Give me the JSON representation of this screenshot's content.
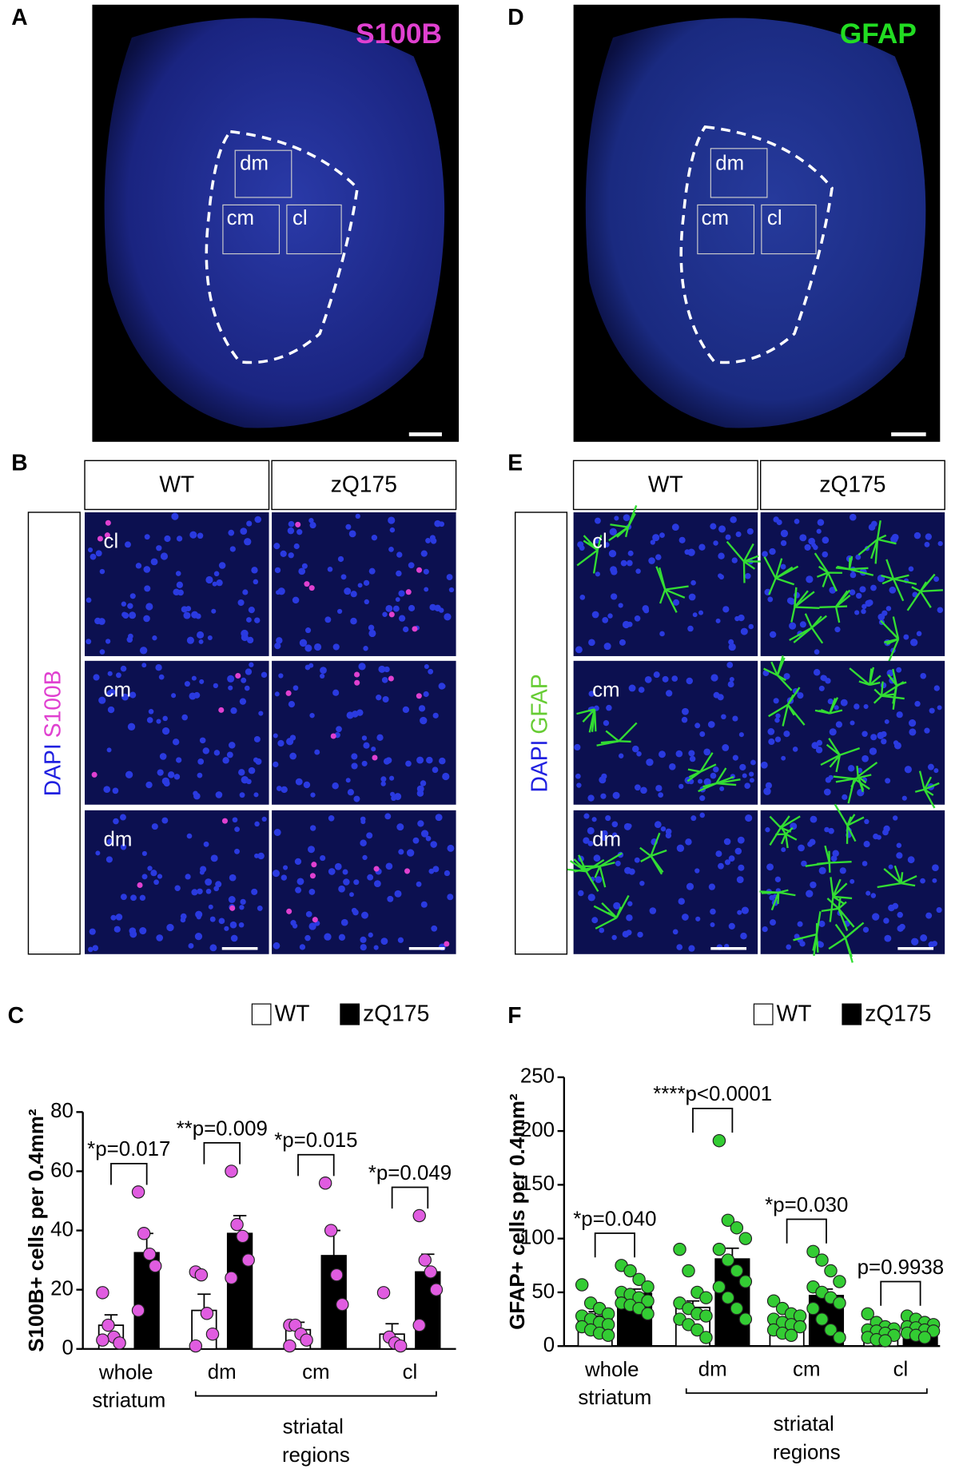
{
  "figure": {
    "labels": [
      "A",
      "B",
      "C",
      "D",
      "E",
      "F"
    ],
    "a": {
      "marker": "S100B",
      "regions": [
        "dm",
        "cm",
        "cl"
      ]
    },
    "b": {
      "columns": [
        "WT",
        "zQ175"
      ],
      "rows": [
        "cl",
        "cm",
        "dm"
      ],
      "stain": [
        "DAPI",
        "S100B"
      ]
    },
    "d": {
      "marker": "GFAP",
      "regions": [
        "dm",
        "cm",
        "cl"
      ]
    },
    "e": {
      "columns": [
        "WT",
        "zQ175"
      ],
      "rows": [
        "cl",
        "cm",
        "dm"
      ],
      "stain": [
        "DAPI",
        "GFAP"
      ]
    }
  },
  "chart_data": [
    {
      "type": "bar",
      "y_label": "S100B+ cells per 0.4mm²",
      "categories": [
        "whole striatum",
        "dm",
        "cm",
        "cl"
      ],
      "group_label": "striatal regions",
      "ylim": [
        0,
        80
      ],
      "yticks": [
        0,
        20,
        40,
        60,
        80
      ],
      "point_color": "#e05ce0",
      "annotations": [
        "*p=0.017",
        "**p=0.009",
        "*p=0.015",
        "*p=0.049"
      ],
      "series": [
        {
          "name": "WT",
          "color": "#ffffff",
          "values": [
            8,
            13,
            6.5,
            5
          ],
          "errors": [
            3.5,
            5.5,
            2.5,
            3.5
          ],
          "points": [
            [
              19,
              8,
              4,
              2,
              3
            ],
            [
              26,
              25,
              12,
              5,
              1
            ],
            [
              8,
              8,
              5,
              3,
              1
            ],
            [
              19,
              4,
              2,
              1
            ]
          ]
        },
        {
          "name": "zQ175",
          "color": "#000000",
          "values": [
            32.5,
            39,
            31.5,
            26
          ],
          "errors": [
            6.5,
            6,
            8.5,
            6
          ],
          "points": [
            [
              53,
              39,
              32,
              28,
              13
            ],
            [
              60,
              42,
              38,
              30,
              24
            ],
            [
              56,
              40,
              25,
              15
            ],
            [
              45,
              30,
              26,
              20,
              8
            ]
          ]
        }
      ]
    },
    {
      "type": "bar",
      "y_label": "GFAP+ cells per 0.4mm²",
      "categories": [
        "whole striatum",
        "dm",
        "cm",
        "cl"
      ],
      "group_label": "striatal regions",
      "ylim": [
        0,
        250
      ],
      "yticks": [
        0,
        50,
        100,
        150,
        200,
        250
      ],
      "point_color": "#33cc33",
      "annotations": [
        "*p=0.040",
        "****p<0.0001",
        "*p=0.030",
        "p=0.9938"
      ],
      "series": [
        {
          "name": "WT",
          "color": "#ffffff",
          "values": [
            28,
            36,
            23,
            14
          ],
          "errors": [
            4,
            6,
            3,
            2
          ],
          "points": [
            [
              57,
              40,
              35,
              30,
              28,
              25,
              22,
              20,
              18,
              15,
              12,
              10
            ],
            [
              90,
              70,
              50,
              45,
              40,
              35,
              30,
              28,
              25,
              20,
              15,
              8
            ],
            [
              42,
              35,
              30,
              28,
              25,
              22,
              20,
              18,
              15,
              12,
              10
            ],
            [
              30,
              22,
              18,
              16,
              15,
              14,
              12,
              10,
              8,
              6,
              5
            ]
          ]
        },
        {
          "name": "zQ175",
          "color": "#000000",
          "values": [
            49,
            81,
            47,
            17
          ],
          "errors": [
            4,
            10,
            6,
            2
          ],
          "points": [
            [
              75,
              70,
              62,
              55,
              50,
              48,
              45,
              42,
              40,
              38,
              35,
              30
            ],
            [
              191,
              117,
              110,
              100,
              90,
              80,
              70,
              60,
              55,
              45,
              35,
              25
            ],
            [
              88,
              80,
              70,
              60,
              55,
              50,
              45,
              40,
              35,
              25,
              15,
              8
            ],
            [
              28,
              25,
              22,
              20,
              18,
              17,
              15,
              14,
              12,
              10,
              8
            ]
          ]
        }
      ]
    }
  ]
}
